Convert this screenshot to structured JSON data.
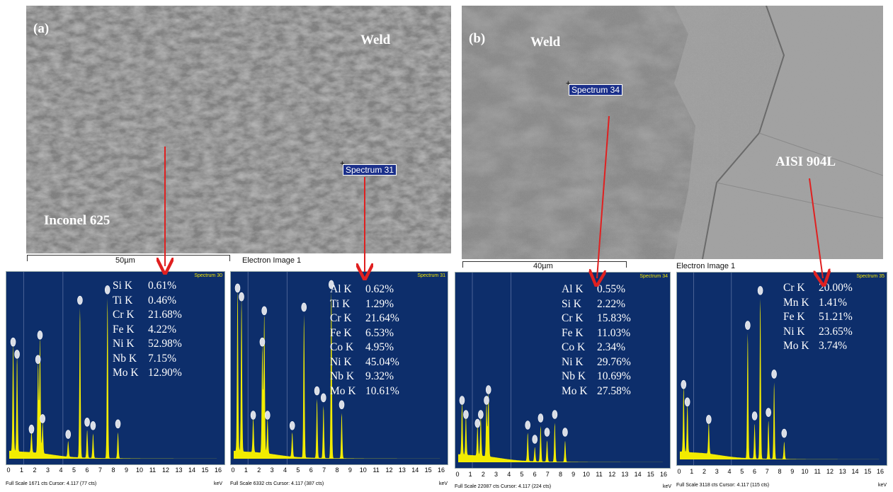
{
  "panel_a": {
    "label": "(a)",
    "weld_label": "Weld",
    "base_label": "Inconel 625",
    "spectrum_tag": "Spectrum 31",
    "scale": "50µm",
    "image_caption": "Electron Image 1"
  },
  "panel_b": {
    "label": "(b)",
    "weld_label": "Weld",
    "base_label": "AISI 904L",
    "spectrum_tag": "Spectrum 34",
    "scale": "40µm",
    "image_caption": "Electron Image 1"
  },
  "spectra": [
    {
      "title": "Spectrum 30",
      "footer": "Full Scale 1671 cts Cursor: 4.117 (77 cts)",
      "unit": "keV",
      "composition": [
        {
          "el": "Si K",
          "val": "0.61%"
        },
        {
          "el": "Ti K",
          "val": "0.46%"
        },
        {
          "el": "Cr K",
          "val": "21.68%"
        },
        {
          "el": "Fe K",
          "val": "4.22%"
        },
        {
          "el": "Ni K",
          "val": "52.98%"
        },
        {
          "el": "Nb K",
          "val": "7.15%"
        },
        {
          "el": "Mo K",
          "val": "12.90%"
        }
      ]
    },
    {
      "title": "Spectrum 31",
      "footer": "Full Scale 6332 cts Cursor: 4.117 (387 cts)",
      "unit": "keV",
      "composition": [
        {
          "el": "Al K",
          "val": "0.62%"
        },
        {
          "el": "Ti K",
          "val": "1.29%"
        },
        {
          "el": "Cr K",
          "val": "21.64%"
        },
        {
          "el": "Fe K",
          "val": "6.53%"
        },
        {
          "el": "Co K",
          "val": "4.95%"
        },
        {
          "el": "Ni K",
          "val": "45.04%"
        },
        {
          "el": "Nb K",
          "val": "9.32%"
        },
        {
          "el": "Mo K",
          "val": "10.61%"
        }
      ]
    },
    {
      "title": "Spectrum 34",
      "footer": "Full Scale 22087 cts Cursor: 4.117 (224 cts)",
      "unit": "keV",
      "composition": [
        {
          "el": "Al K",
          "val": "0.55%"
        },
        {
          "el": "Si K",
          "val": "2.22%"
        },
        {
          "el": "Cr K",
          "val": "15.83%"
        },
        {
          "el": "Fe K",
          "val": "11.03%"
        },
        {
          "el": "Co K",
          "val": "2.34%"
        },
        {
          "el": "Ni K",
          "val": "29.76%"
        },
        {
          "el": "Nb K",
          "val": "10.69%"
        },
        {
          "el": "Mo K",
          "val": "27.58%"
        }
      ]
    },
    {
      "title": "Spectrum 35",
      "footer": "Full Scale 3118 cts Cursor: 4.117 (115 cts)",
      "unit": "keV",
      "composition": [
        {
          "el": "Cr K",
          "val": "20.00%"
        },
        {
          "el": "Mn K",
          "val": "1.41%"
        },
        {
          "el": "Fe K",
          "val": "51.21%"
        },
        {
          "el": "Ni K",
          "val": "23.65%"
        },
        {
          "el": "Mo K",
          "val": "3.74%"
        }
      ]
    }
  ],
  "axis_ticks": [
    "0",
    "1",
    "2",
    "3",
    "4",
    "5",
    "6",
    "7",
    "8",
    "9",
    "10",
    "11",
    "12",
    "13",
    "14",
    "15",
    "16"
  ],
  "colors": {
    "panel_bg": "#0d2e6b",
    "spectrum_fill": "#f2ec00",
    "arrow": "#e02020",
    "tag_bg": "#1a2f8a"
  }
}
